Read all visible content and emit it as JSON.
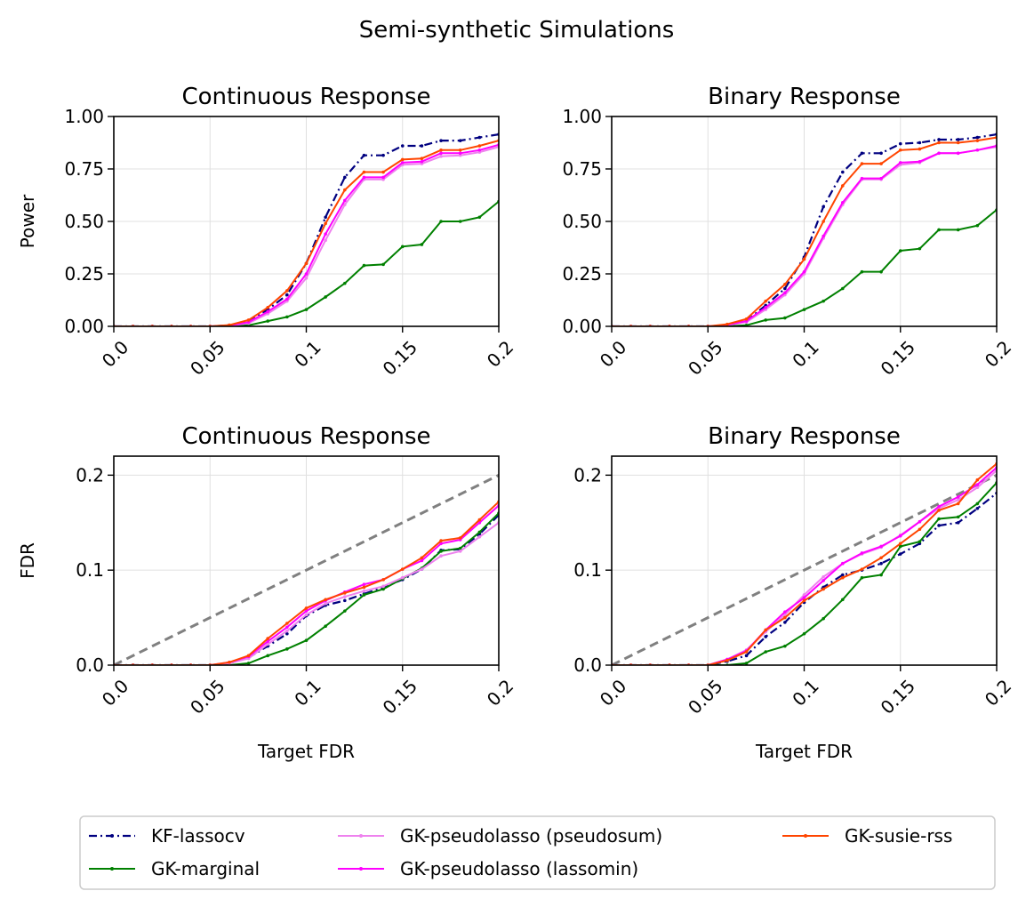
{
  "figure_title": "Semi-synthetic Simulations",
  "colors": {
    "KF-lassocv": "#000080",
    "GK-marginal": "#008000",
    "GK-pseudolasso (pseudosum)": "#ee82ee",
    "GK-pseudolasso (lassomin)": "#ff00ff",
    "GK-susie-rss": "#ff4500",
    "reference": "#808080",
    "grid": "#e0e0e0"
  },
  "legend": [
    "KF-lassocv",
    "GK-marginal",
    "GK-pseudolasso (pseudosum)",
    "GK-pseudolasso (lassomin)",
    "GK-susie-rss"
  ],
  "chart_data": [
    {
      "type": "line",
      "title": "Continuous Response",
      "xlabel": "",
      "ylabel": "Power",
      "xlim": [
        0,
        0.2
      ],
      "ylim": [
        0,
        1
      ],
      "xticks": [
        0,
        0.05,
        0.1,
        0.15,
        0.2
      ],
      "xtick_labels": [
        "0.0",
        "0.05",
        "0.1",
        "0.15",
        "0.2"
      ],
      "yticks": [
        0,
        0.25,
        0.5,
        0.75,
        1.0
      ],
      "ytick_labels": [
        "0.00",
        "0.25",
        "0.50",
        "0.75",
        "1.00"
      ],
      "grid": true,
      "x": [
        0,
        0.01,
        0.02,
        0.03,
        0.04,
        0.05,
        0.06,
        0.07,
        0.08,
        0.09,
        0.1,
        0.11,
        0.12,
        0.13,
        0.14,
        0.15,
        0.16,
        0.17,
        0.18,
        0.19,
        0.2
      ],
      "series": [
        {
          "name": "KF-lassocv",
          "values": [
            0,
            0,
            0,
            0,
            0,
            0,
            0.005,
            0.02,
            0.08,
            0.15,
            0.3,
            0.52,
            0.71,
            0.815,
            0.815,
            0.86,
            0.86,
            0.885,
            0.885,
            0.9,
            0.915
          ]
        },
        {
          "name": "GK-marginal",
          "values": [
            0,
            0,
            0,
            0,
            0,
            0,
            0,
            0.005,
            0.025,
            0.045,
            0.08,
            0.14,
            0.205,
            0.29,
            0.295,
            0.38,
            0.39,
            0.5,
            0.5,
            0.52,
            0.595
          ]
        },
        {
          "name": "GK-pseudolasso (pseudosum)",
          "values": [
            0,
            0,
            0,
            0,
            0,
            0,
            0.003,
            0.015,
            0.06,
            0.12,
            0.23,
            0.41,
            0.58,
            0.7,
            0.7,
            0.77,
            0.775,
            0.81,
            0.815,
            0.83,
            0.855
          ]
        },
        {
          "name": "GK-pseudolasso (lassomin)",
          "values": [
            0,
            0,
            0,
            0,
            0,
            0,
            0.004,
            0.02,
            0.07,
            0.13,
            0.25,
            0.44,
            0.6,
            0.71,
            0.71,
            0.78,
            0.785,
            0.825,
            0.825,
            0.84,
            0.865
          ]
        },
        {
          "name": "GK-susie-rss",
          "values": [
            0,
            0,
            0,
            0,
            0,
            0,
            0.006,
            0.03,
            0.09,
            0.17,
            0.3,
            0.49,
            0.65,
            0.735,
            0.735,
            0.795,
            0.8,
            0.84,
            0.84,
            0.86,
            0.885
          ]
        }
      ]
    },
    {
      "type": "line",
      "title": "Binary Response",
      "xlabel": "",
      "ylabel": "",
      "xlim": [
        0,
        0.2
      ],
      "ylim": [
        0,
        1
      ],
      "xticks": [
        0,
        0.05,
        0.1,
        0.15,
        0.2
      ],
      "xtick_labels": [
        "0.0",
        "0.05",
        "0.1",
        "0.15",
        "0.2"
      ],
      "yticks": [
        0,
        0.25,
        0.5,
        0.75,
        1.0
      ],
      "ytick_labels": [
        "0.00",
        "0.25",
        "0.50",
        "0.75",
        "1.00"
      ],
      "grid": true,
      "x": [
        0,
        0.01,
        0.02,
        0.03,
        0.04,
        0.05,
        0.06,
        0.07,
        0.08,
        0.09,
        0.1,
        0.11,
        0.12,
        0.13,
        0.14,
        0.15,
        0.16,
        0.17,
        0.18,
        0.19,
        0.2
      ],
      "series": [
        {
          "name": "KF-lassocv",
          "values": [
            0,
            0,
            0,
            0,
            0,
            0,
            0.005,
            0.025,
            0.1,
            0.18,
            0.33,
            0.57,
            0.735,
            0.825,
            0.825,
            0.87,
            0.875,
            0.89,
            0.89,
            0.9,
            0.915
          ]
        },
        {
          "name": "GK-marginal",
          "values": [
            0,
            0,
            0,
            0,
            0,
            0,
            0,
            0.005,
            0.03,
            0.04,
            0.08,
            0.12,
            0.18,
            0.26,
            0.26,
            0.36,
            0.37,
            0.46,
            0.46,
            0.48,
            0.555
          ]
        },
        {
          "name": "GK-pseudolasso (pseudosum)",
          "values": [
            0,
            0,
            0,
            0,
            0,
            0,
            0.006,
            0.02,
            0.08,
            0.15,
            0.25,
            0.42,
            0.58,
            0.7,
            0.7,
            0.77,
            0.78,
            0.825,
            0.825,
            0.84,
            0.855
          ]
        },
        {
          "name": "GK-pseudolasso (lassomin)",
          "values": [
            0,
            0,
            0,
            0,
            0,
            0,
            0.007,
            0.025,
            0.09,
            0.16,
            0.26,
            0.43,
            0.59,
            0.705,
            0.705,
            0.78,
            0.785,
            0.825,
            0.825,
            0.84,
            0.86
          ]
        },
        {
          "name": "GK-susie-rss",
          "values": [
            0,
            0,
            0,
            0,
            0,
            0,
            0.01,
            0.035,
            0.12,
            0.2,
            0.32,
            0.5,
            0.67,
            0.775,
            0.775,
            0.84,
            0.845,
            0.875,
            0.875,
            0.885,
            0.9
          ]
        }
      ]
    },
    {
      "type": "line",
      "title": "Continuous Response",
      "xlabel": "Target FDR",
      "ylabel": "FDR",
      "xlim": [
        0,
        0.2
      ],
      "ylim": [
        0,
        0.22
      ],
      "xticks": [
        0,
        0.05,
        0.1,
        0.15,
        0.2
      ],
      "xtick_labels": [
        "0.0",
        "0.05",
        "0.1",
        "0.15",
        "0.2"
      ],
      "yticks": [
        0,
        0.1,
        0.2
      ],
      "ytick_labels": [
        "0.0",
        "0.1",
        "0.2"
      ],
      "grid": true,
      "reference_line": {
        "x": [
          0,
          0.2
        ],
        "y": [
          0,
          0.2
        ],
        "style": "dashed"
      },
      "x": [
        0,
        0.01,
        0.02,
        0.03,
        0.04,
        0.05,
        0.06,
        0.07,
        0.08,
        0.09,
        0.1,
        0.11,
        0.12,
        0.13,
        0.14,
        0.15,
        0.16,
        0.17,
        0.18,
        0.19,
        0.2
      ],
      "series": [
        {
          "name": "KF-lassocv",
          "values": [
            0,
            0,
            0,
            0,
            0,
            0,
            0.002,
            0.008,
            0.02,
            0.033,
            0.052,
            0.063,
            0.068,
            0.075,
            0.082,
            0.09,
            0.101,
            0.121,
            0.122,
            0.138,
            0.158
          ]
        },
        {
          "name": "GK-marginal",
          "values": [
            0,
            0,
            0,
            0,
            0,
            0,
            0,
            0.002,
            0.01,
            0.017,
            0.026,
            0.041,
            0.057,
            0.074,
            0.08,
            0.091,
            0.102,
            0.12,
            0.123,
            0.14,
            0.16
          ]
        },
        {
          "name": "GK-pseudolasso (pseudosum)",
          "values": [
            0,
            0,
            0,
            0,
            0,
            0,
            0.002,
            0.007,
            0.022,
            0.036,
            0.053,
            0.065,
            0.072,
            0.078,
            0.083,
            0.092,
            0.101,
            0.115,
            0.12,
            0.135,
            0.15
          ]
        },
        {
          "name": "GK-pseudolasso (lassomin)",
          "values": [
            0,
            0,
            0,
            0,
            0,
            0,
            0.003,
            0.009,
            0.025,
            0.04,
            0.057,
            0.068,
            0.077,
            0.085,
            0.09,
            0.101,
            0.11,
            0.128,
            0.132,
            0.15,
            0.168
          ]
        },
        {
          "name": "GK-susie-rss",
          "values": [
            0,
            0,
            0,
            0,
            0,
            0,
            0.003,
            0.01,
            0.028,
            0.044,
            0.06,
            0.069,
            0.076,
            0.082,
            0.09,
            0.101,
            0.113,
            0.131,
            0.134,
            0.153,
            0.172
          ]
        }
      ]
    },
    {
      "type": "line",
      "title": "Binary Response",
      "xlabel": "Target FDR",
      "ylabel": "",
      "xlim": [
        0,
        0.2
      ],
      "ylim": [
        0,
        0.22
      ],
      "xticks": [
        0,
        0.05,
        0.1,
        0.15,
        0.2
      ],
      "xtick_labels": [
        "0.0",
        "0.05",
        "0.1",
        "0.15",
        "0.2"
      ],
      "yticks": [
        0,
        0.1,
        0.2
      ],
      "ytick_labels": [
        "0.0",
        "0.1",
        "0.2"
      ],
      "grid": true,
      "reference_line": {
        "x": [
          0,
          0.2
        ],
        "y": [
          0,
          0.2
        ],
        "style": "dashed"
      },
      "x": [
        0,
        0.01,
        0.02,
        0.03,
        0.04,
        0.05,
        0.06,
        0.07,
        0.08,
        0.09,
        0.1,
        0.11,
        0.12,
        0.13,
        0.14,
        0.15,
        0.16,
        0.17,
        0.18,
        0.19,
        0.2
      ],
      "series": [
        {
          "name": "KF-lassocv",
          "values": [
            0,
            0,
            0,
            0,
            0,
            0,
            0.004,
            0.01,
            0.03,
            0.045,
            0.066,
            0.082,
            0.095,
            0.1,
            0.107,
            0.117,
            0.128,
            0.147,
            0.15,
            0.165,
            0.181
          ]
        },
        {
          "name": "GK-marginal",
          "values": [
            0,
            0,
            0,
            0,
            0,
            0,
            0,
            0.002,
            0.014,
            0.02,
            0.033,
            0.049,
            0.069,
            0.092,
            0.095,
            0.125,
            0.13,
            0.154,
            0.156,
            0.17,
            0.192
          ]
        },
        {
          "name": "GK-pseudolasso (pseudosum)",
          "values": [
            0,
            0,
            0,
            0,
            0,
            0,
            0.006,
            0.016,
            0.035,
            0.053,
            0.074,
            0.093,
            0.107,
            0.117,
            0.124,
            0.137,
            0.151,
            0.165,
            0.174,
            0.187,
            0.205
          ]
        },
        {
          "name": "GK-pseudolasso (lassomin)",
          "values": [
            0,
            0,
            0,
            0,
            0,
            0,
            0.006,
            0.015,
            0.037,
            0.056,
            0.071,
            0.089,
            0.107,
            0.118,
            0.125,
            0.136,
            0.151,
            0.167,
            0.177,
            0.19,
            0.208
          ]
        },
        {
          "name": "GK-susie-rss",
          "values": [
            0,
            0,
            0,
            0,
            0,
            0,
            0.005,
            0.014,
            0.037,
            0.05,
            0.068,
            0.08,
            0.092,
            0.101,
            0.113,
            0.128,
            0.143,
            0.163,
            0.17,
            0.195,
            0.212
          ]
        }
      ]
    }
  ]
}
